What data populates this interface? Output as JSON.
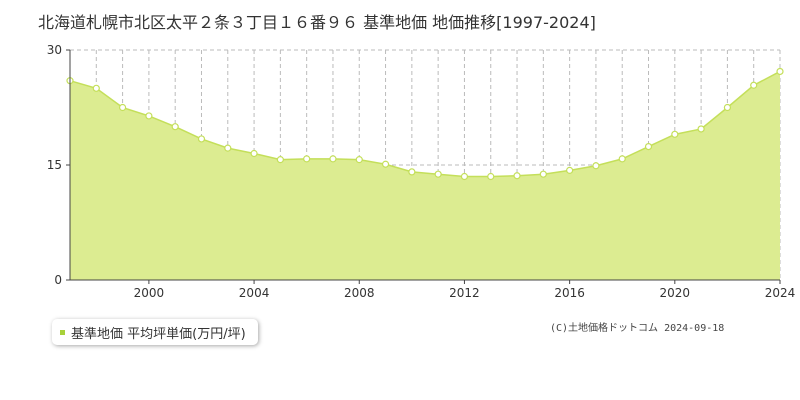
{
  "chart_data": {
    "type": "area",
    "title": "北海道札幌市北区太平２条３丁目１６番９６ 基準地価 地価推移[1997-2024]",
    "x": [
      1997,
      1998,
      1999,
      2000,
      2001,
      2002,
      2003,
      2004,
      2005,
      2006,
      2007,
      2008,
      2009,
      2010,
      2011,
      2012,
      2013,
      2014,
      2015,
      2016,
      2017,
      2018,
      2019,
      2020,
      2021,
      2022,
      2023,
      2024
    ],
    "series": [
      {
        "name": "基準地価 平均坪単価(万円/坪)",
        "values": [
          26.0,
          25.0,
          22.5,
          21.4,
          20.0,
          18.4,
          17.2,
          16.5,
          15.7,
          15.8,
          15.8,
          15.7,
          15.1,
          14.1,
          13.8,
          13.5,
          13.5,
          13.6,
          13.8,
          14.3,
          14.9,
          15.8,
          17.4,
          19.0,
          19.7,
          22.5,
          25.4,
          27.2
        ]
      }
    ],
    "x_ticks": [
      "2000",
      "2004",
      "2008",
      "2012",
      "2016",
      "2020",
      "2024"
    ],
    "y_ticks": [
      "0",
      "15",
      "30"
    ],
    "ylim": [
      0,
      30
    ],
    "xlim": [
      1997,
      2024
    ],
    "grid": true,
    "legend": "bottom-left"
  },
  "colors": {
    "area_fill": "#dcec91",
    "line": "#c4df5a",
    "marker_fill": "#ffffff",
    "legend_swatch": "#a8d13a",
    "grid": "#bbbbbb",
    "axis": "#444444"
  },
  "legend": {
    "label": "基準地価 平均坪単価(万円/坪)"
  },
  "copyright": "(C)土地価格ドットコム 2024-09-18"
}
